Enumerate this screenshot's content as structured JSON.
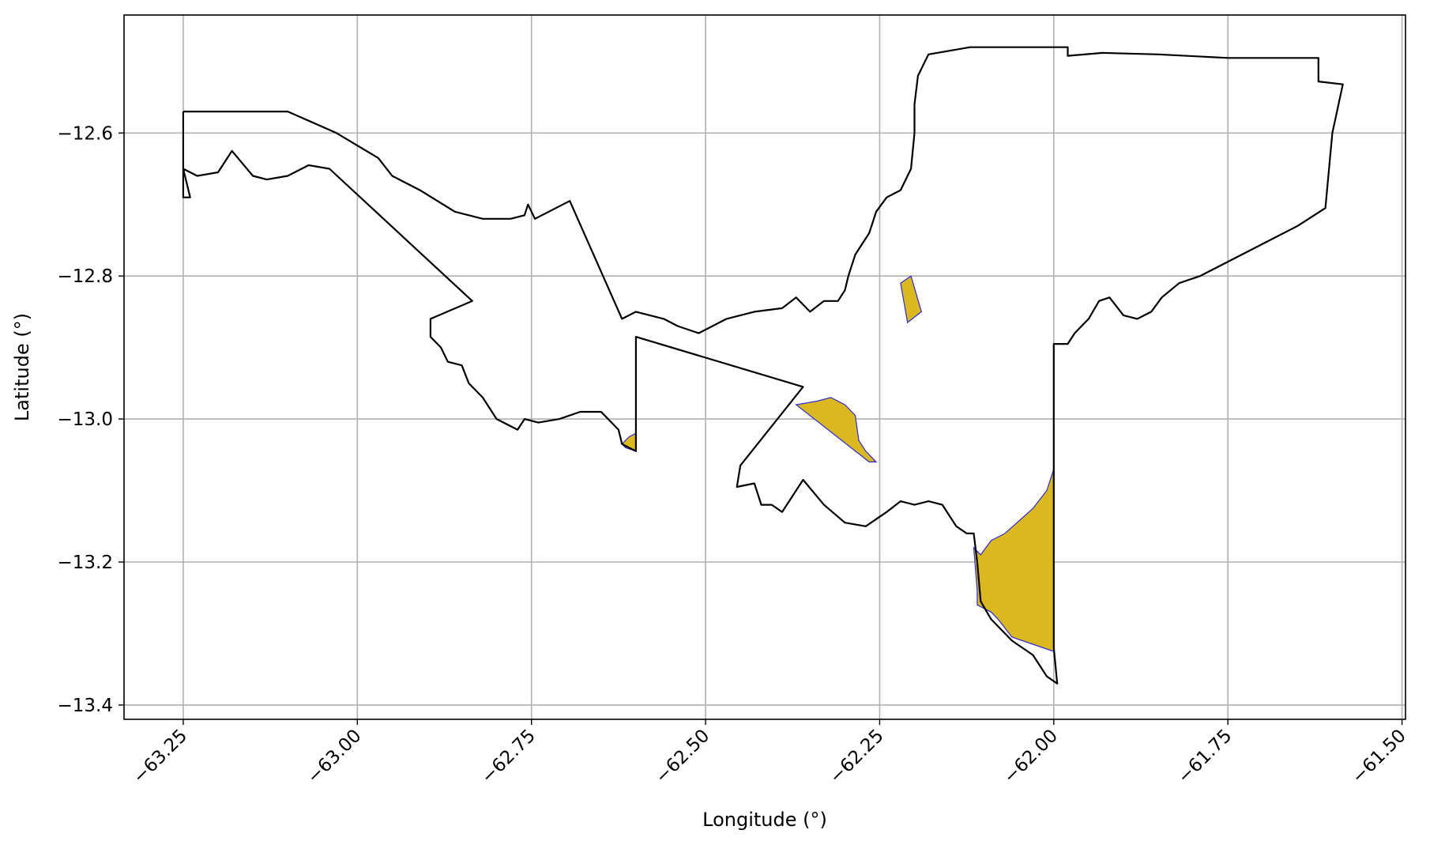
{
  "chart_data": {
    "type": "map",
    "xlabel": "Longitude (°)",
    "ylabel": "Latitude (°)",
    "xlim": [
      -63.335,
      -61.495
    ],
    "ylim": [
      -13.42,
      -12.435
    ],
    "xticks": [
      {
        "value": -63.25,
        "label": "−63.25"
      },
      {
        "value": -63.0,
        "label": "−63.00"
      },
      {
        "value": -62.75,
        "label": "−62.75"
      },
      {
        "value": -62.5,
        "label": "−62.50"
      },
      {
        "value": -62.25,
        "label": "−62.25"
      },
      {
        "value": -62.0,
        "label": "−62.00"
      },
      {
        "value": -61.75,
        "label": "−61.75"
      },
      {
        "value": -61.5,
        "label": "−61.50"
      }
    ],
    "yticks": [
      {
        "value": -12.6,
        "label": "−12.6"
      },
      {
        "value": -12.8,
        "label": "−12.8"
      },
      {
        "value": -13.0,
        "label": "−13.0"
      },
      {
        "value": -13.2,
        "label": "−13.2"
      },
      {
        "value": -13.4,
        "label": "−13.4"
      }
    ],
    "grid": true,
    "colors": {
      "boundary": "#000000",
      "highlight_fill": "#dbb91e",
      "highlight_edge": "#2b2bd6",
      "grid": "#b0b0b0"
    },
    "boundary": [
      [
        -63.25,
        -12.57
      ],
      [
        -63.1,
        -12.57
      ],
      [
        -63.03,
        -12.6
      ],
      [
        -62.97,
        -12.635
      ],
      [
        -62.95,
        -12.66
      ],
      [
        -62.91,
        -12.68
      ],
      [
        -62.86,
        -12.71
      ],
      [
        -62.82,
        -12.72
      ],
      [
        -62.78,
        -12.72
      ],
      [
        -62.76,
        -12.715
      ],
      [
        -62.755,
        -12.7
      ],
      [
        -62.745,
        -12.72
      ],
      [
        -62.695,
        -12.695
      ],
      [
        -62.62,
        -12.86
      ],
      [
        -62.6,
        -12.85
      ],
      [
        -62.56,
        -12.86
      ],
      [
        -62.54,
        -12.87
      ],
      [
        -62.51,
        -12.88
      ],
      [
        -62.49,
        -12.87
      ],
      [
        -62.47,
        -12.86
      ],
      [
        -62.43,
        -12.85
      ],
      [
        -62.39,
        -12.845
      ],
      [
        -62.37,
        -12.83
      ],
      [
        -62.35,
        -12.85
      ],
      [
        -62.33,
        -12.835
      ],
      [
        -62.31,
        -12.835
      ],
      [
        -62.3,
        -12.82
      ],
      [
        -62.295,
        -12.8
      ],
      [
        -62.285,
        -12.77
      ],
      [
        -62.265,
        -12.74
      ],
      [
        -62.255,
        -12.71
      ],
      [
        -62.24,
        -12.69
      ],
      [
        -62.22,
        -12.68
      ],
      [
        -62.205,
        -12.65
      ],
      [
        -62.2,
        -12.6
      ],
      [
        -62.2,
        -12.56
      ],
      [
        -62.195,
        -12.52
      ],
      [
        -62.18,
        -12.49
      ],
      [
        -62.12,
        -12.48
      ],
      [
        -62.02,
        -12.48
      ],
      [
        -61.98,
        -12.48
      ],
      [
        -61.98,
        -12.492
      ],
      [
        -61.93,
        -12.488
      ],
      [
        -61.85,
        -12.49
      ],
      [
        -61.75,
        -12.495
      ],
      [
        -61.7,
        -12.495
      ],
      [
        -61.62,
        -12.495
      ],
      [
        -61.62,
        -12.528
      ],
      [
        -61.585,
        -12.532
      ],
      [
        -61.6,
        -12.6
      ],
      [
        -61.61,
        -12.705
      ],
      [
        -61.65,
        -12.73
      ],
      [
        -61.7,
        -12.755
      ],
      [
        -61.75,
        -12.78
      ],
      [
        -61.79,
        -12.8
      ],
      [
        -61.82,
        -12.81
      ],
      [
        -61.845,
        -12.83
      ],
      [
        -61.86,
        -12.85
      ],
      [
        -61.88,
        -12.86
      ],
      [
        -61.9,
        -12.855
      ],
      [
        -61.92,
        -12.83
      ],
      [
        -61.935,
        -12.835
      ],
      [
        -61.95,
        -12.86
      ],
      [
        -61.97,
        -12.88
      ],
      [
        -61.98,
        -12.895
      ],
      [
        -62.0,
        -12.895
      ],
      [
        -62.0,
        -13.07
      ],
      [
        -62.0,
        -13.32
      ],
      [
        -61.995,
        -13.37
      ],
      [
        -62.01,
        -13.36
      ],
      [
        -62.03,
        -13.33
      ],
      [
        -62.06,
        -13.31
      ],
      [
        -62.09,
        -13.28
      ],
      [
        -62.105,
        -13.255
      ],
      [
        -62.11,
        -13.2
      ],
      [
        -62.115,
        -13.16
      ],
      [
        -62.125,
        -13.16
      ],
      [
        -62.14,
        -13.15
      ],
      [
        -62.16,
        -13.12
      ],
      [
        -62.18,
        -13.115
      ],
      [
        -62.2,
        -13.12
      ],
      [
        -62.22,
        -13.115
      ],
      [
        -62.24,
        -13.13
      ],
      [
        -62.27,
        -13.15
      ],
      [
        -62.3,
        -13.145
      ],
      [
        -62.33,
        -13.12
      ],
      [
        -62.36,
        -13.085
      ],
      [
        -62.39,
        -13.13
      ],
      [
        -62.405,
        -13.12
      ],
      [
        -62.42,
        -13.12
      ],
      [
        -62.43,
        -13.09
      ],
      [
        -62.455,
        -13.095
      ],
      [
        -62.45,
        -13.065
      ],
      [
        -62.36,
        -12.955
      ],
      [
        -62.6,
        -12.885
      ],
      [
        -62.6,
        -13.045
      ],
      [
        -62.62,
        -13.035
      ],
      [
        -62.625,
        -13.015
      ],
      [
        -62.65,
        -12.99
      ],
      [
        -62.68,
        -12.99
      ],
      [
        -62.71,
        -13.0
      ],
      [
        -62.74,
        -13.005
      ],
      [
        -62.76,
        -13.0
      ],
      [
        -62.77,
        -13.015
      ],
      [
        -62.8,
        -13.0
      ],
      [
        -62.82,
        -12.97
      ],
      [
        -62.84,
        -12.95
      ],
      [
        -62.85,
        -12.925
      ],
      [
        -62.87,
        -12.92
      ],
      [
        -62.88,
        -12.9
      ],
      [
        -62.895,
        -12.885
      ],
      [
        -62.895,
        -12.86
      ],
      [
        -62.835,
        -12.835
      ],
      [
        -63.04,
        -12.65
      ],
      [
        -63.07,
        -12.645
      ],
      [
        -63.1,
        -12.66
      ],
      [
        -63.13,
        -12.665
      ],
      [
        -63.15,
        -12.66
      ],
      [
        -63.18,
        -12.625
      ],
      [
        -63.2,
        -12.655
      ],
      [
        -63.23,
        -12.66
      ],
      [
        -63.25,
        -12.65
      ],
      [
        -63.24,
        -12.69
      ],
      [
        -63.25,
        -12.69
      ],
      [
        -63.25,
        -12.57
      ]
    ],
    "highlighted_areas": [
      [
        [
          -62.22,
          -12.81
        ],
        [
          -62.205,
          -12.8
        ],
        [
          -62.19,
          -12.85
        ],
        [
          -62.21,
          -12.865
        ],
        [
          -62.22,
          -12.81
        ]
      ],
      [
        [
          -62.37,
          -12.98
        ],
        [
          -62.34,
          -12.975
        ],
        [
          -62.32,
          -12.97
        ],
        [
          -62.3,
          -12.98
        ],
        [
          -62.285,
          -12.995
        ],
        [
          -62.28,
          -13.03
        ],
        [
          -62.27,
          -13.045
        ],
        [
          -62.255,
          -13.06
        ],
        [
          -62.265,
          -13.06
        ],
        [
          -62.37,
          -12.98
        ]
      ],
      [
        [
          -62.61,
          -13.025
        ],
        [
          -62.6,
          -13.02
        ],
        [
          -62.6,
          -13.045
        ],
        [
          -62.615,
          -13.04
        ],
        [
          -62.62,
          -13.035
        ],
        [
          -62.61,
          -13.025
        ]
      ],
      [
        [
          -62.0,
          -13.07
        ],
        [
          -62.01,
          -13.1
        ],
        [
          -62.03,
          -13.125
        ],
        [
          -62.07,
          -13.16
        ],
        [
          -62.09,
          -13.17
        ],
        [
          -62.105,
          -13.19
        ],
        [
          -62.115,
          -13.18
        ],
        [
          -62.11,
          -13.24
        ],
        [
          -62.11,
          -13.26
        ],
        [
          -62.09,
          -13.27
        ],
        [
          -62.08,
          -13.28
        ],
        [
          -62.06,
          -13.305
        ],
        [
          -62.0,
          -13.325
        ],
        [
          -62.0,
          -13.07
        ]
      ]
    ]
  }
}
